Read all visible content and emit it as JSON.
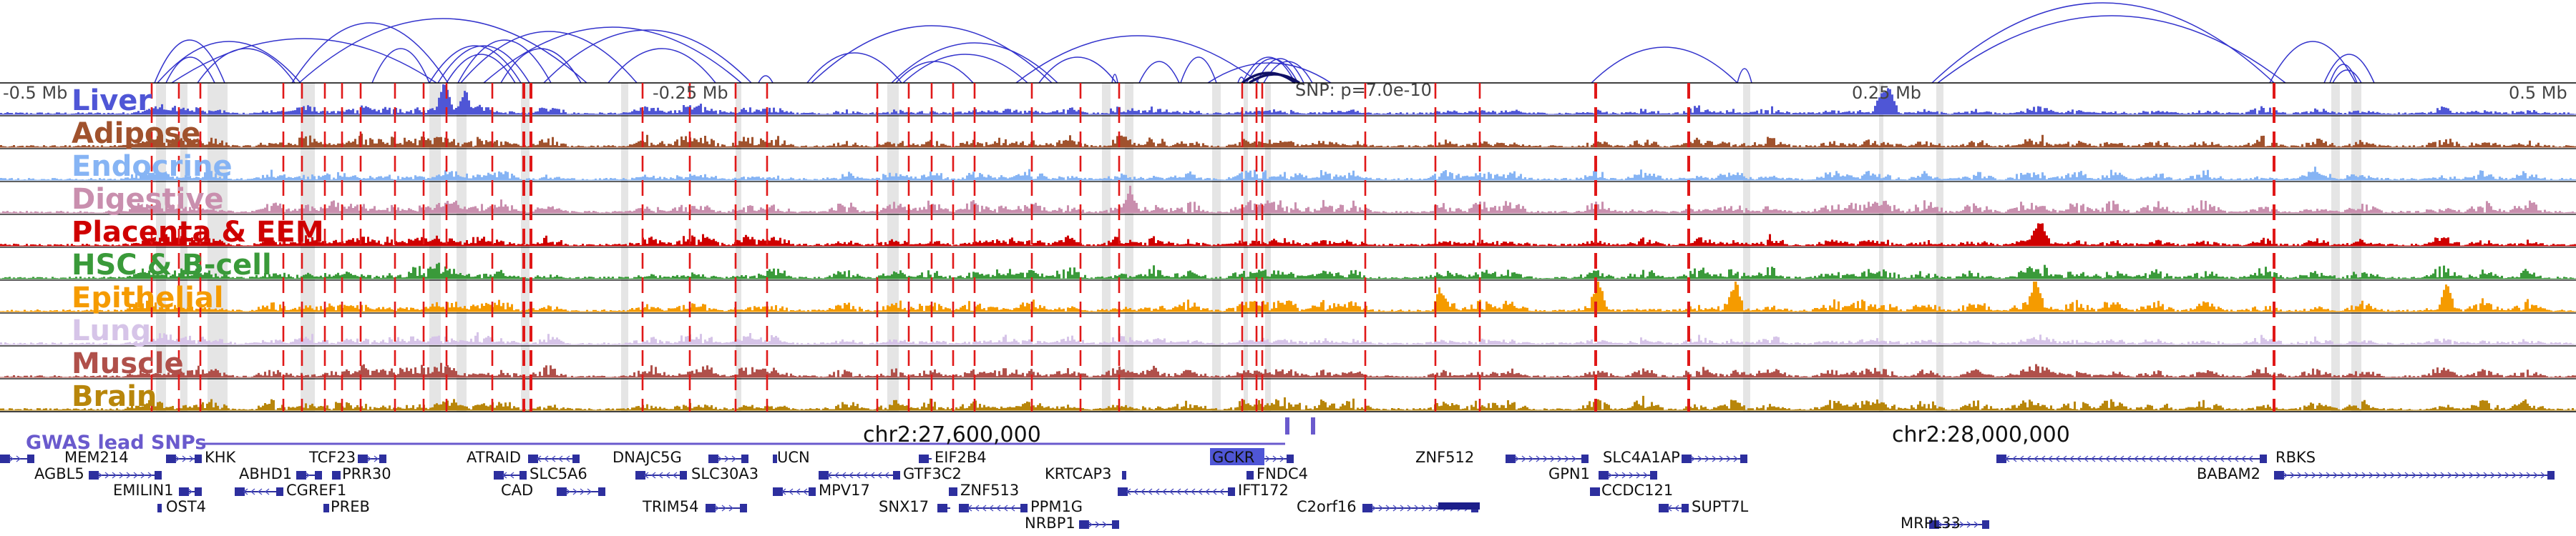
{
  "axis": {
    "left_label": "-0.5 Mb",
    "mid_left_label": "-0.25 Mb",
    "mid_right_label": "0.25 Mb",
    "right_label": "0.5 Mb",
    "snp_label": "SNP: p=7.0e-10"
  },
  "tracks": [
    {
      "name": "Liver",
      "color": "#4f56d6"
    },
    {
      "name": "Adipose",
      "color": "#a0522d"
    },
    {
      "name": "Endocrine",
      "color": "#86b4f4"
    },
    {
      "name": "Digestive",
      "color": "#c98fae"
    },
    {
      "name": "Placenta & EEM",
      "color": "#cf0000"
    },
    {
      "name": "HSC & B-cell",
      "color": "#3a9a3a"
    },
    {
      "name": "Epithelial",
      "color": "#f59b00"
    },
    {
      "name": "Lung",
      "color": "#d6c4e8"
    },
    {
      "name": "Muscle",
      "color": "#b0504a"
    },
    {
      "name": "Brain",
      "color": "#b8860b"
    }
  ],
  "gwas_label": "GWAS lead SNPs",
  "gwas_color": "#6a5acd",
  "coordinates": [
    "chr2:27,600,000",
    "chr2:28,000,000"
  ],
  "highlight_gene": "GCKR",
  "genes": [
    {
      "name": "MEM214",
      "row": 0
    },
    {
      "name": "KHK",
      "row": 0
    },
    {
      "name": "TCF23",
      "row": 0
    },
    {
      "name": "ATRAID",
      "row": 0
    },
    {
      "name": "DNAJC5G",
      "row": 0
    },
    {
      "name": "UCN",
      "row": 0
    },
    {
      "name": "EIF2B4",
      "row": 0
    },
    {
      "name": "GCKR",
      "row": 0
    },
    {
      "name": "ZNF512",
      "row": 0
    },
    {
      "name": "SLC4A1AP",
      "row": 0
    },
    {
      "name": "RBKS",
      "row": 0
    },
    {
      "name": "AGBL5",
      "row": 1
    },
    {
      "name": "ABHD1",
      "row": 1
    },
    {
      "name": "PRR30",
      "row": 1
    },
    {
      "name": "SLC5A6",
      "row": 1
    },
    {
      "name": "SLC30A3",
      "row": 1
    },
    {
      "name": "GTF3C2",
      "row": 1
    },
    {
      "name": "KRTCAP3",
      "row": 1
    },
    {
      "name": "FNDC4",
      "row": 1
    },
    {
      "name": "GPN1",
      "row": 1
    },
    {
      "name": "BABAM2",
      "row": 1
    },
    {
      "name": "EMILIN1",
      "row": 2
    },
    {
      "name": "CGREF1",
      "row": 2
    },
    {
      "name": "CAD",
      "row": 2
    },
    {
      "name": "MPV17",
      "row": 2
    },
    {
      "name": "ZNF513",
      "row": 2
    },
    {
      "name": "IFT172",
      "row": 2
    },
    {
      "name": "CCDC121",
      "row": 2
    },
    {
      "name": "OST4",
      "row": 3
    },
    {
      "name": "PREB",
      "row": 3
    },
    {
      "name": "TRIM54",
      "row": 3
    },
    {
      "name": "SNX17",
      "row": 3
    },
    {
      "name": "PPM1G",
      "row": 3
    },
    {
      "name": "C2orf16",
      "row": 3
    },
    {
      "name": "SUPT7L",
      "row": 3
    },
    {
      "name": "NRBP1",
      "row": 4
    },
    {
      "name": "MRPL33",
      "row": 4
    }
  ]
}
